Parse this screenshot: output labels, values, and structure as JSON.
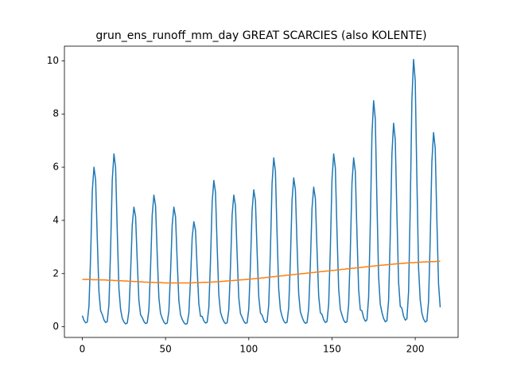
{
  "chart_data": {
    "type": "line",
    "title": "grun_ens_runoff_mm_day GREAT SCARCIES (also KOLENTE)",
    "x": [
      0,
      1,
      2,
      3,
      4,
      5,
      6,
      7,
      8,
      9,
      10,
      11,
      12,
      13,
      14,
      15,
      16,
      17,
      18,
      19,
      20,
      21,
      22,
      23,
      24,
      25,
      26,
      27,
      28,
      29,
      30,
      31,
      32,
      33,
      34,
      35,
      36,
      37,
      38,
      39,
      40,
      41,
      42,
      43,
      44,
      45,
      46,
      47,
      48,
      49,
      50,
      51,
      52,
      53,
      54,
      55,
      56,
      57,
      58,
      59,
      60,
      61,
      62,
      63,
      64,
      65,
      66,
      67,
      68,
      69,
      70,
      71,
      72,
      73,
      74,
      75,
      76,
      77,
      78,
      79,
      80,
      81,
      82,
      83,
      84,
      85,
      86,
      87,
      88,
      89,
      90,
      91,
      92,
      93,
      94,
      95,
      96,
      97,
      98,
      99,
      100,
      101,
      102,
      103,
      104,
      105,
      106,
      107,
      108,
      109,
      110,
      111,
      112,
      113,
      114,
      115,
      116,
      117,
      118,
      119,
      120,
      121,
      122,
      123,
      124,
      125,
      126,
      127,
      128,
      129,
      130,
      131,
      132,
      133,
      134,
      135,
      136,
      137,
      138,
      139,
      140,
      141,
      142,
      143,
      144,
      145,
      146,
      147,
      148,
      149,
      150,
      151,
      152,
      153,
      154,
      155,
      156,
      157,
      158,
      159,
      160,
      161,
      162,
      163,
      164,
      165,
      166,
      167,
      168,
      169,
      170,
      171,
      172,
      173,
      174,
      175,
      176,
      177,
      178,
      179,
      180,
      181,
      182,
      183,
      184,
      185,
      186,
      187,
      188,
      189,
      190,
      191,
      192,
      193,
      194,
      195,
      196,
      197,
      198,
      199,
      200,
      201,
      202,
      203,
      204,
      205,
      206,
      207,
      208,
      209,
      210,
      211,
      212,
      213,
      214,
      215
    ],
    "series": [
      {
        "color": "#1f77b4",
        "values": [
          0.42,
          0.24,
          0.15,
          0.18,
          0.78,
          2.7,
          5.1,
          6.0,
          5.52,
          3.3,
          1.32,
          0.6,
          0.46,
          0.26,
          0.16,
          0.2,
          0.85,
          2.93,
          5.53,
          6.5,
          5.98,
          3.58,
          1.43,
          0.65,
          0.32,
          0.18,
          0.11,
          0.14,
          0.59,
          2.03,
          3.83,
          4.5,
          4.14,
          2.48,
          0.99,
          0.45,
          0.35,
          0.2,
          0.12,
          0.15,
          0.64,
          2.23,
          4.21,
          4.95,
          4.55,
          2.72,
          1.09,
          0.5,
          0.32,
          0.18,
          0.11,
          0.14,
          0.59,
          2.03,
          3.83,
          4.5,
          4.14,
          2.48,
          0.99,
          0.45,
          0.28,
          0.16,
          0.1,
          0.12,
          0.51,
          1.78,
          3.36,
          3.95,
          3.63,
          2.17,
          0.87,
          0.4,
          0.39,
          0.22,
          0.14,
          0.17,
          0.72,
          2.48,
          4.68,
          5.5,
          5.06,
          3.03,
          1.21,
          0.55,
          0.35,
          0.2,
          0.12,
          0.15,
          0.64,
          2.23,
          4.21,
          4.95,
          4.55,
          2.72,
          1.09,
          0.5,
          0.36,
          0.21,
          0.13,
          0.15,
          0.67,
          2.32,
          4.38,
          5.15,
          4.74,
          2.83,
          1.13,
          0.52,
          0.44,
          0.25,
          0.16,
          0.19,
          0.83,
          2.86,
          5.4,
          6.35,
          5.84,
          3.49,
          1.4,
          0.64,
          0.39,
          0.22,
          0.14,
          0.17,
          0.73,
          2.52,
          4.76,
          5.6,
          5.15,
          3.08,
          1.23,
          0.56,
          0.37,
          0.21,
          0.13,
          0.16,
          0.68,
          2.36,
          4.46,
          5.25,
          4.83,
          2.89,
          1.16,
          0.53,
          0.46,
          0.26,
          0.16,
          0.2,
          0.85,
          2.93,
          5.53,
          6.5,
          5.98,
          3.58,
          1.43,
          0.65,
          0.44,
          0.25,
          0.16,
          0.19,
          0.83,
          2.86,
          5.4,
          6.35,
          5.84,
          3.49,
          1.4,
          0.64,
          0.6,
          0.34,
          0.21,
          0.26,
          1.11,
          3.83,
          7.23,
          8.5,
          7.82,
          4.68,
          1.87,
          0.85,
          0.54,
          0.31,
          0.19,
          0.23,
          0.99,
          3.44,
          6.5,
          7.65,
          7.04,
          4.21,
          1.68,
          0.77,
          0.7,
          0.4,
          0.25,
          0.3,
          1.31,
          4.52,
          8.54,
          10.05,
          9.25,
          5.53,
          2.21,
          1.01,
          0.51,
          0.29,
          0.18,
          0.22,
          0.95,
          3.29,
          6.21,
          7.3,
          6.72,
          4.02,
          1.61,
          0.73
        ]
      },
      {
        "color": "#ff7f0e",
        "values": [
          1.78,
          1.78,
          1.78,
          1.78,
          1.78,
          1.78,
          1.77,
          1.77,
          1.77,
          1.77,
          1.77,
          1.76,
          1.76,
          1.76,
          1.76,
          1.75,
          1.75,
          1.75,
          1.75,
          1.74,
          1.74,
          1.74,
          1.73,
          1.73,
          1.73,
          1.72,
          1.72,
          1.72,
          1.71,
          1.71,
          1.71,
          1.7,
          1.7,
          1.7,
          1.69,
          1.69,
          1.69,
          1.68,
          1.68,
          1.68,
          1.67,
          1.67,
          1.67,
          1.67,
          1.66,
          1.66,
          1.66,
          1.66,
          1.66,
          1.65,
          1.65,
          1.65,
          1.65,
          1.65,
          1.65,
          1.65,
          1.65,
          1.65,
          1.65,
          1.65,
          1.65,
          1.65,
          1.65,
          1.65,
          1.65,
          1.65,
          1.65,
          1.66,
          1.66,
          1.66,
          1.66,
          1.66,
          1.67,
          1.67,
          1.67,
          1.67,
          1.68,
          1.68,
          1.68,
          1.69,
          1.69,
          1.69,
          1.7,
          1.7,
          1.71,
          1.71,
          1.72,
          1.72,
          1.73,
          1.73,
          1.74,
          1.74,
          1.75,
          1.75,
          1.76,
          1.76,
          1.77,
          1.77,
          1.78,
          1.78,
          1.79,
          1.79,
          1.8,
          1.81,
          1.81,
          1.82,
          1.82,
          1.83,
          1.84,
          1.84,
          1.85,
          1.86,
          1.86,
          1.87,
          1.88,
          1.88,
          1.89,
          1.9,
          1.9,
          1.91,
          1.92,
          1.92,
          1.93,
          1.94,
          1.94,
          1.95,
          1.96,
          1.96,
          1.97,
          1.98,
          1.98,
          1.99,
          2.0,
          2.0,
          2.01,
          2.02,
          2.02,
          2.03,
          2.04,
          2.04,
          2.05,
          2.06,
          2.06,
          2.07,
          2.08,
          2.08,
          2.09,
          2.1,
          2.1,
          2.11,
          2.12,
          2.12,
          2.13,
          2.14,
          2.14,
          2.15,
          2.16,
          2.16,
          2.17,
          2.18,
          2.18,
          2.19,
          2.2,
          2.2,
          2.21,
          2.22,
          2.22,
          2.23,
          2.24,
          2.24,
          2.25,
          2.26,
          2.26,
          2.27,
          2.28,
          2.28,
          2.29,
          2.3,
          2.3,
          2.31,
          2.32,
          2.32,
          2.33,
          2.33,
          2.34,
          2.35,
          2.35,
          2.36,
          2.36,
          2.37,
          2.37,
          2.38,
          2.38,
          2.39,
          2.39,
          2.4,
          2.4,
          2.41,
          2.41,
          2.41,
          2.42,
          2.42,
          2.43,
          2.43,
          2.43,
          2.44,
          2.44,
          2.44,
          2.44,
          2.45,
          2.45,
          2.45,
          2.45,
          2.46,
          2.46,
          2.46
        ]
      }
    ],
    "xlim": [
      -10.75,
      225.75
    ],
    "ylim": [
      -0.4,
      10.55
    ],
    "xticks": [
      0,
      50,
      100,
      150,
      200
    ],
    "yticks": [
      0,
      2,
      4,
      6,
      8,
      10
    ],
    "grid": false
  }
}
